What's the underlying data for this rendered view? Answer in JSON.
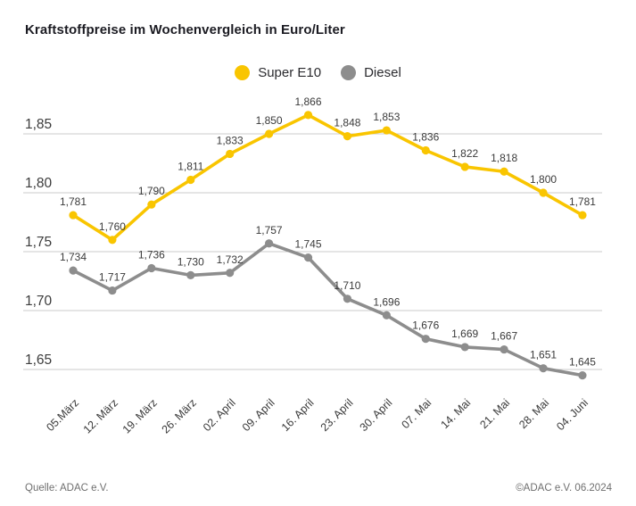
{
  "title": "Kraftstoffpreise im Wochenvergleich in Euro/Liter",
  "legend": [
    {
      "label": "Super E10",
      "color": "#F9C500"
    },
    {
      "label": "Diesel",
      "color": "#8D8D8D"
    }
  ],
  "footer": {
    "source": "Quelle: ADAC e.V.",
    "copyright": "©ADAC e.V. 06.2024"
  },
  "chart_data": {
    "type": "line",
    "title": "Kraftstoffpreise im Wochenvergleich in Euro/Liter",
    "xlabel": "",
    "ylabel": "",
    "unit_note_in_title": "Euro/Liter",
    "categories": [
      "05.März",
      "12. März",
      "19. März",
      "26. März",
      "02. April",
      "09. April",
      "16. April",
      "23. April",
      "30. April",
      "07. Mai",
      "14. Mai",
      "21. Mai",
      "28. Mai",
      "04. Juni"
    ],
    "series": [
      {
        "name": "Super E10",
        "color": "#F9C500",
        "values": [
          1.781,
          1.76,
          1.79,
          1.811,
          1.833,
          1.85,
          1.866,
          1.848,
          1.853,
          1.836,
          1.822,
          1.818,
          1.8,
          1.781
        ]
      },
      {
        "name": "Diesel",
        "color": "#8D8D8D",
        "values": [
          1.734,
          1.717,
          1.736,
          1.73,
          1.732,
          1.757,
          1.745,
          1.71,
          1.696,
          1.676,
          1.669,
          1.667,
          1.651,
          1.645
        ]
      }
    ],
    "y_ticks": [
      1.85,
      1.8,
      1.75,
      1.7,
      1.65
    ],
    "ylim": [
      1.62,
      1.89
    ],
    "grid": true,
    "legend_position": "top",
    "decimal_separator": ",",
    "point_labels_visible": true
  }
}
